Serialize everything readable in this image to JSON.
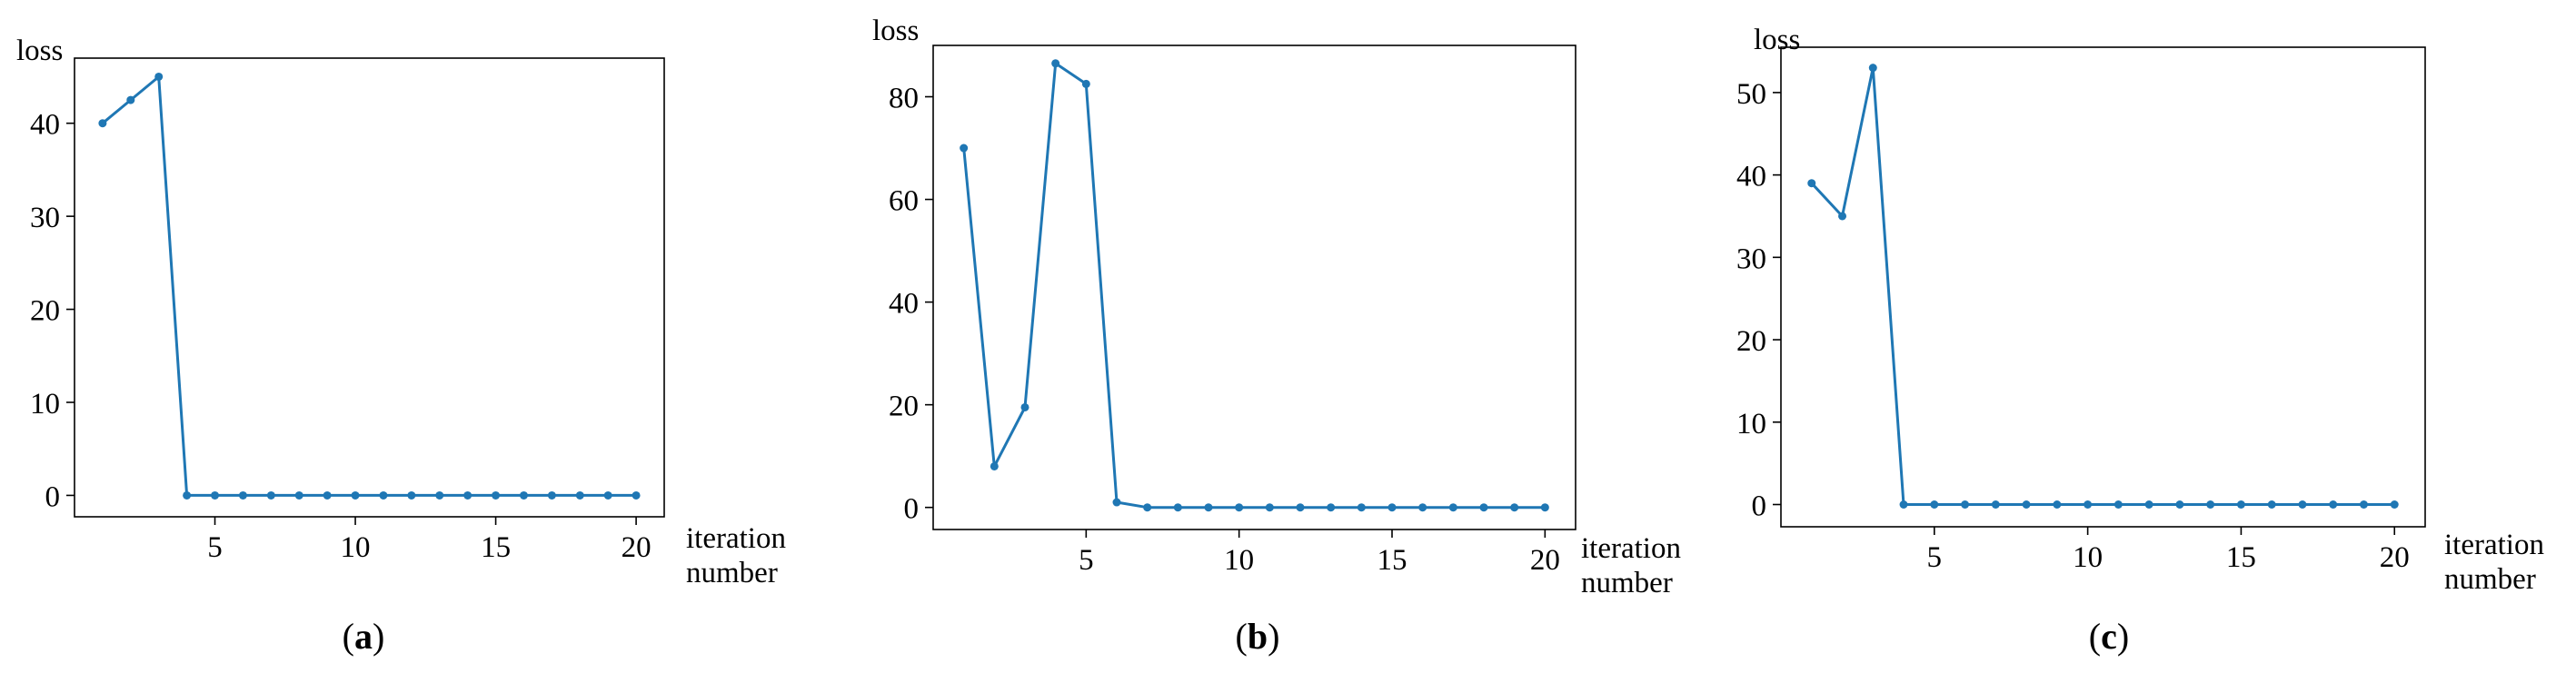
{
  "figure": {
    "line_color": "#1f77b4"
  },
  "chart_data": [
    {
      "type": "line",
      "id": "a",
      "caption_letter": "a",
      "xlabel_line1": "iteration",
      "xlabel_line2": "number",
      "ylabel": "loss",
      "xlim": [
        0,
        21
      ],
      "ylim": [
        -2.3,
        47
      ],
      "xticks": [
        5,
        10,
        15,
        20
      ],
      "yticks": [
        0,
        10,
        20,
        30,
        40
      ],
      "grid": false,
      "series": [
        {
          "x": [
            1,
            2,
            3,
            4,
            5,
            6,
            7,
            8,
            9,
            10,
            11,
            12,
            13,
            14,
            15,
            16,
            17,
            18,
            19,
            20
          ],
          "y": [
            40,
            42.5,
            45,
            0,
            0,
            0,
            0,
            0,
            0,
            0,
            0,
            0,
            0,
            0,
            0,
            0,
            0,
            0,
            0,
            0
          ]
        }
      ]
    },
    {
      "type": "line",
      "id": "b",
      "caption_letter": "b",
      "xlabel_line1": "iteration",
      "xlabel_line2": "number",
      "ylabel": "loss",
      "xlim": [
        0,
        21
      ],
      "ylim": [
        -4.3,
        90
      ],
      "xticks": [
        5,
        10,
        15,
        20
      ],
      "yticks": [
        0,
        20,
        40,
        60,
        80
      ],
      "grid": false,
      "series": [
        {
          "x": [
            1,
            2,
            3,
            4,
            5,
            6,
            7,
            8,
            9,
            10,
            11,
            12,
            13,
            14,
            15,
            16,
            17,
            18,
            19,
            20
          ],
          "y": [
            70,
            8,
            19.5,
            86.5,
            82.5,
            1,
            0,
            0,
            0,
            0,
            0,
            0,
            0,
            0,
            0,
            0,
            0,
            0,
            0,
            0
          ]
        }
      ]
    },
    {
      "type": "line",
      "id": "c",
      "caption_letter": "c",
      "xlabel_line1": "iteration",
      "xlabel_line2": "number",
      "ylabel": "loss",
      "xlim": [
        0,
        21
      ],
      "ylim": [
        -2.7,
        55.5
      ],
      "xticks": [
        5,
        10,
        15,
        20
      ],
      "yticks": [
        0,
        10,
        20,
        30,
        40,
        50
      ],
      "grid": false,
      "series": [
        {
          "x": [
            1,
            2,
            3,
            4,
            5,
            6,
            7,
            8,
            9,
            10,
            11,
            12,
            13,
            14,
            15,
            16,
            17,
            18,
            19,
            20
          ],
          "y": [
            39,
            35,
            53,
            0,
            0,
            0,
            0,
            0,
            0,
            0,
            0,
            0,
            0,
            0,
            0,
            0,
            0,
            0,
            0,
            0
          ]
        }
      ]
    }
  ]
}
